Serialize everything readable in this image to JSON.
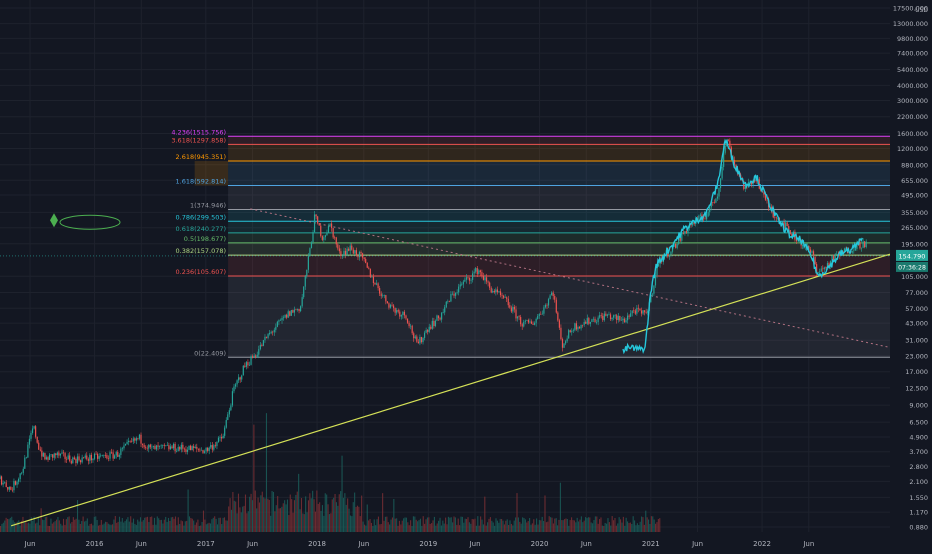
{
  "chart_data": {
    "type": "candlestick",
    "title": "",
    "scale": "log",
    "currency_label": "USD",
    "y_ticks": [
      "17500.000",
      "13000.000",
      "9800.000",
      "7400.000",
      "5400.000",
      "4000.000",
      "3000.000",
      "2200.000",
      "1600.000",
      "1200.000",
      "880.000",
      "655.000",
      "495.000",
      "355.000",
      "265.000",
      "195.000",
      "105.000",
      "77.000",
      "57.000",
      "43.000",
      "31.000",
      "23.000",
      "17.000",
      "12.500",
      "9.000",
      "6.500",
      "4.900",
      "3.700",
      "2.800",
      "2.100",
      "1.550",
      "1.170",
      "0.880"
    ],
    "y_tick_values": [
      17500,
      13000,
      9800,
      7400,
      5400,
      4000,
      3000,
      2200,
      1600,
      1200,
      880,
      655,
      495,
      355,
      265,
      195,
      105,
      77,
      57,
      43,
      31,
      23,
      17,
      12.5,
      9,
      6.5,
      4.9,
      3.7,
      2.8,
      2.1,
      1.55,
      1.17,
      0.88
    ],
    "x_ticks": [
      "Jun",
      "2016",
      "Jun",
      "2017",
      "Jun",
      "2018",
      "Jun",
      "2019",
      "Jun",
      "2020",
      "Jun",
      "2021",
      "Jun",
      "2022",
      "Jun"
    ],
    "x_tick_dates": [
      2015.42,
      2016.0,
      2016.42,
      2017.0,
      2017.42,
      2018.0,
      2018.42,
      2019.0,
      2019.42,
      2020.0,
      2020.42,
      2021.0,
      2021.42,
      2022.0,
      2022.42
    ],
    "x_range": [
      2015.15,
      2023.15
    ],
    "y_range": [
      0.8,
      17500
    ],
    "fib_levels": [
      {
        "ratio": "4.236",
        "label": "4.236(1515.756)",
        "value": 1515.756,
        "color": "#e040fb"
      },
      {
        "ratio": "3.618",
        "label": "3.618(1297.858)",
        "value": 1297.858,
        "color": "#ef5350"
      },
      {
        "ratio": "2.618",
        "label": "2.618(945.351)",
        "value": 945.351,
        "color": "#ff9800"
      },
      {
        "ratio": "1.618",
        "label": "1.618(592.814)",
        "value": 592.814,
        "color": "#4fa3e0"
      },
      {
        "ratio": "1",
        "label": "1(374.946)",
        "value": 374.946,
        "color": "#9598a1"
      },
      {
        "ratio": "0.786",
        "label": "0.786(299.503)",
        "value": 299.503,
        "color": "#26c6da"
      },
      {
        "ratio": "0.618",
        "label": "0.618(240.277)",
        "value": 240.277,
        "color": "#26a69a"
      },
      {
        "ratio": "0.5",
        "label": "0.5(198.677)",
        "value": 198.677,
        "color": "#66bb6a"
      },
      {
        "ratio": "0.382",
        "label": "0.382(157.078)",
        "value": 157.078,
        "color": "#aed581"
      },
      {
        "ratio": "0.236",
        "label": "0.236(105.607)",
        "value": 105.607,
        "color": "#ef5350"
      },
      {
        "ratio": "0",
        "label": "0(22.409)",
        "value": 22.409,
        "color": "#9598a1"
      }
    ],
    "fib_x_range": [
      2017.2,
      2023.15
    ],
    "trendline_up": {
      "x": [
        2015.25,
        2023.15
      ],
      "y": [
        0.9,
        160
      ],
      "color": "#d4e157"
    },
    "trendline_down_dotted": {
      "x": [
        2017.4,
        2023.15
      ],
      "y": [
        380,
        27
      ],
      "color": "#b07080"
    },
    "price_path": [
      [
        2015.15,
        2.2
      ],
      [
        2015.25,
        1.8
      ],
      [
        2015.35,
        2.6
      ],
      [
        2015.45,
        6.0
      ],
      [
        2015.5,
        4.0
      ],
      [
        2015.55,
        3.2
      ],
      [
        2015.65,
        3.5
      ],
      [
        2015.8,
        3.2
      ],
      [
        2016.0,
        3.3
      ],
      [
        2016.2,
        3.5
      ],
      [
        2016.3,
        4.2
      ],
      [
        2016.4,
        4.8
      ],
      [
        2016.5,
        3.9
      ],
      [
        2016.7,
        4.0
      ],
      [
        2016.9,
        3.9
      ],
      [
        2017.0,
        3.8
      ],
      [
        2017.05,
        4.1
      ],
      [
        2017.15,
        4.8
      ],
      [
        2017.25,
        12.0
      ],
      [
        2017.35,
        19.0
      ],
      [
        2017.45,
        24.0
      ],
      [
        2017.55,
        33.0
      ],
      [
        2017.65,
        42.0
      ],
      [
        2017.75,
        52.0
      ],
      [
        2017.85,
        58.0
      ],
      [
        2017.92,
        140.0
      ],
      [
        2017.98,
        330.0
      ],
      [
        2018.05,
        220.0
      ],
      [
        2018.12,
        280.0
      ],
      [
        2018.2,
        160.0
      ],
      [
        2018.3,
        180.0
      ],
      [
        2018.4,
        150.0
      ],
      [
        2018.5,
        100.0
      ],
      [
        2018.6,
        70.0
      ],
      [
        2018.7,
        55.0
      ],
      [
        2018.8,
        50.0
      ],
      [
        2018.9,
        28.0
      ],
      [
        2019.0,
        40.0
      ],
      [
        2019.1,
        48.0
      ],
      [
        2019.2,
        70.0
      ],
      [
        2019.3,
        90.0
      ],
      [
        2019.45,
        120.0
      ],
      [
        2019.55,
        85.0
      ],
      [
        2019.7,
        65.0
      ],
      [
        2019.85,
        42.0
      ],
      [
        2019.95,
        44.0
      ],
      [
        2020.05,
        60.0
      ],
      [
        2020.12,
        80.0
      ],
      [
        2020.2,
        28.0
      ],
      [
        2020.3,
        40.0
      ],
      [
        2020.45,
        45.0
      ],
      [
        2020.6,
        50.0
      ],
      [
        2020.75,
        45.0
      ],
      [
        2020.85,
        55.0
      ],
      [
        2020.95,
        50.0
      ],
      [
        2021.0,
        70.0
      ],
      [
        2021.05,
        120.0
      ],
      [
        2021.1,
        150.0
      ],
      [
        2021.2,
        180.0
      ],
      [
        2021.35,
        280.0
      ],
      [
        2021.5,
        340.0
      ],
      [
        2021.6,
        500.0
      ],
      [
        2021.68,
        1500.0
      ],
      [
        2021.75,
        900.0
      ],
      [
        2021.85,
        550.0
      ],
      [
        2021.95,
        700.0
      ],
      [
        2022.0,
        500.0
      ],
      [
        2022.1,
        350.0
      ],
      [
        2022.2,
        280.0
      ],
      [
        2022.3,
        220.0
      ],
      [
        2022.35,
        200.0
      ],
      [
        2022.45,
        160.0
      ],
      [
        2022.5,
        115.0
      ],
      [
        2022.55,
        120.0
      ],
      [
        2022.65,
        150.0
      ],
      [
        2022.75,
        170.0
      ],
      [
        2022.85,
        190.0
      ],
      [
        2022.95,
        200.0
      ]
    ],
    "overlay_path": [
      [
        2020.75,
        25.0
      ],
      [
        2020.8,
        27.0
      ],
      [
        2020.9,
        26.0
      ],
      [
        2020.95,
        27.0
      ],
      [
        2021.0,
        80.0
      ],
      [
        2021.05,
        130.0
      ],
      [
        2021.15,
        170.0
      ],
      [
        2021.3,
        260.0
      ],
      [
        2021.4,
        300.0
      ],
      [
        2021.5,
        350.0
      ],
      [
        2021.6,
        600.0
      ],
      [
        2021.67,
        1450.0
      ],
      [
        2021.75,
        900.0
      ],
      [
        2021.85,
        600.0
      ],
      [
        2021.95,
        700.0
      ],
      [
        2022.05,
        450.0
      ],
      [
        2022.15,
        300.0
      ],
      [
        2022.25,
        230.0
      ],
      [
        2022.35,
        210.0
      ],
      [
        2022.45,
        150.0
      ],
      [
        2022.5,
        105.0
      ],
      [
        2022.6,
        125.0
      ],
      [
        2022.7,
        160.0
      ],
      [
        2022.8,
        175.0
      ],
      [
        2022.9,
        210.0
      ]
    ],
    "current_price": {
      "label": "154.790",
      "value": 154.79
    },
    "countdown": {
      "label": "07:36:28"
    }
  }
}
